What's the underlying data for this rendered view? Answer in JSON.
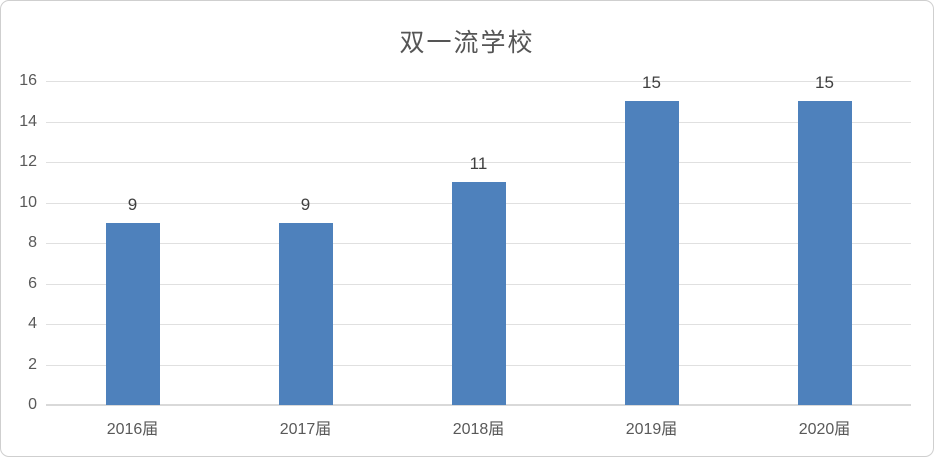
{
  "chart_data": {
    "type": "bar",
    "title": "双一流学校",
    "categories": [
      "2016届",
      "2017届",
      "2018届",
      "2019届",
      "2020届"
    ],
    "values": [
      9,
      9,
      11,
      15,
      15
    ],
    "data_labels": [
      "9",
      "9",
      "11",
      "15",
      "15"
    ],
    "xlabel": "",
    "ylabel": "",
    "ylim": [
      0,
      16
    ],
    "yticks": [
      0,
      2,
      4,
      6,
      8,
      10,
      12,
      14,
      16
    ],
    "grid": true,
    "legend": false,
    "bar_color": "#4E81BC",
    "gridline_color": "#E0E0E0",
    "axis_line_color": "#D9D9D9",
    "tick_label_color": "#595959",
    "data_label_color": "#404040",
    "title_color": "#555555",
    "frame_border_color": "#CFCFCF",
    "background_color": "#FFFFFF"
  }
}
